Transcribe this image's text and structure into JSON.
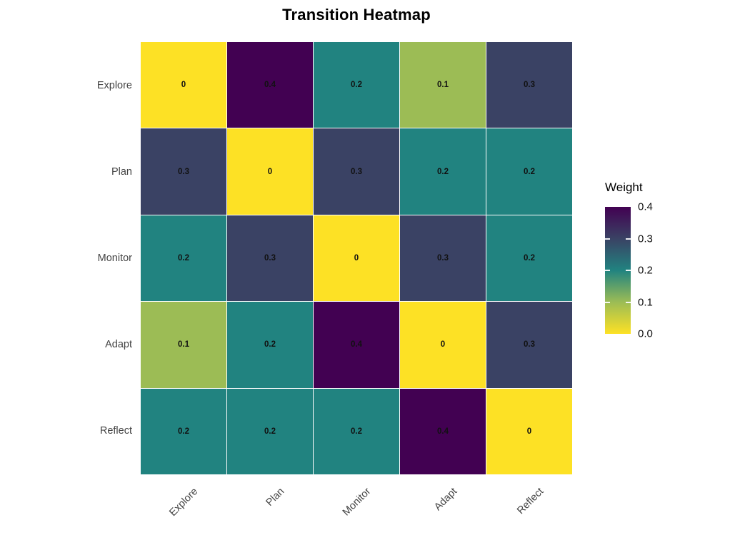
{
  "title": "Transition Heatmap",
  "chart_data": {
    "type": "heatmap",
    "title": "Transition Heatmap",
    "rows": [
      "Explore",
      "Plan",
      "Monitor",
      "Adapt",
      "Reflect"
    ],
    "columns": [
      "Explore",
      "Plan",
      "Monitor",
      "Adapt",
      "Reflect"
    ],
    "values": [
      [
        0,
        0.4,
        0.2,
        0.1,
        0.3
      ],
      [
        0.3,
        0,
        0.3,
        0.2,
        0.2
      ],
      [
        0.2,
        0.3,
        0,
        0.3,
        0.2
      ],
      [
        0.1,
        0.2,
        0.4,
        0,
        0.3
      ],
      [
        0.2,
        0.2,
        0.2,
        0.4,
        0
      ]
    ],
    "color_scale": {
      "name": "viridis-reversed",
      "domain": [
        0,
        0.4
      ],
      "stops": [
        {
          "value": 0.0,
          "color": "#FDE125"
        },
        {
          "value": 0.1,
          "color": "#9CBC55"
        },
        {
          "value": 0.2,
          "color": "#218380"
        },
        {
          "value": 0.3,
          "color": "#3A4264"
        },
        {
          "value": 0.4,
          "color": "#420152"
        }
      ]
    },
    "legend": {
      "title": "Weight",
      "position": "right",
      "ticks": [
        "0.4",
        "0.3",
        "0.2",
        "0.1",
        "0.0"
      ]
    },
    "cell_text_color": "#111111",
    "grid": false
  }
}
